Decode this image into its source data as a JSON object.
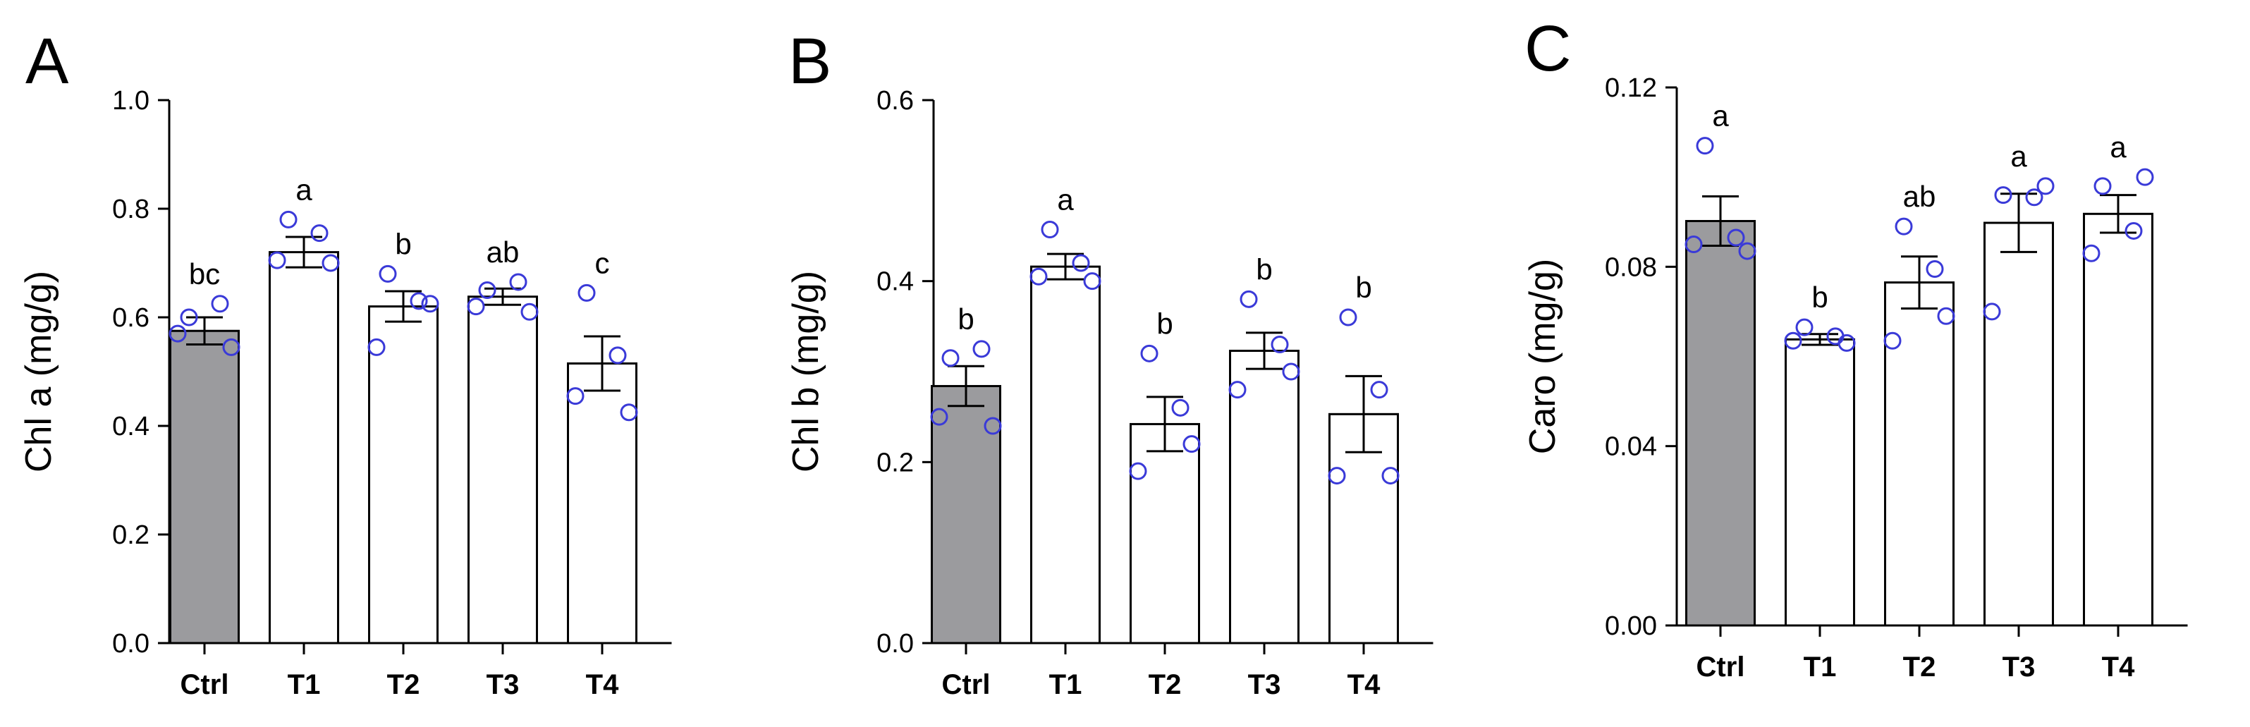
{
  "colors": {
    "control_bar": "#9b9b9e",
    "treatment_bar": "#ffffff",
    "outline": "#000000",
    "points": "#3a3ad8"
  },
  "chart_data": [
    {
      "type": "bar",
      "panel": "A",
      "ylabel": "Chl a (mg/g)",
      "ylim": [
        0,
        1.0
      ],
      "yticks": [
        "0.0",
        "0.2",
        "0.4",
        "0.6",
        "0.8",
        "1.0"
      ],
      "categories": [
        "Ctrl",
        "T1",
        "T2",
        "T3",
        "T4"
      ],
      "values": [
        0.575,
        0.72,
        0.62,
        0.638,
        0.515
      ],
      "sem": [
        0.025,
        0.028,
        0.028,
        0.015,
        0.05
      ],
      "points": [
        [
          0.6,
          0.625,
          0.545,
          0.57
        ],
        [
          0.78,
          0.755,
          0.7,
          0.705
        ],
        [
          0.68,
          0.63,
          0.625,
          0.545
        ],
        [
          0.65,
          0.665,
          0.61,
          0.62
        ],
        [
          0.645,
          0.53,
          0.425,
          0.455
        ]
      ],
      "significance": [
        "bc",
        "a",
        "b",
        "ab",
        "c"
      ]
    },
    {
      "type": "bar",
      "panel": "B",
      "ylabel": "Chl b (mg/g)",
      "ylim": [
        0,
        0.6
      ],
      "yticks": [
        "0.0",
        "0.2",
        "0.4",
        "0.6"
      ],
      "categories": [
        "Ctrl",
        "T1",
        "T2",
        "T3",
        "T4"
      ],
      "values": [
        0.284,
        0.416,
        0.242,
        0.323,
        0.253
      ],
      "sem": [
        0.022,
        0.014,
        0.03,
        0.02,
        0.042
      ],
      "points": [
        [
          0.315,
          0.325,
          0.24,
          0.25
        ],
        [
          0.457,
          0.42,
          0.4,
          0.405
        ],
        [
          0.32,
          0.26,
          0.22,
          0.19
        ],
        [
          0.38,
          0.33,
          0.3,
          0.28
        ],
        [
          0.36,
          0.28,
          0.185,
          0.185
        ]
      ],
      "significance": [
        "b",
        "a",
        "b",
        "b",
        "b"
      ]
    },
    {
      "type": "bar",
      "panel": "C",
      "ylabel": "Caro (mg/g)",
      "ylim": [
        0,
        0.12
      ],
      "yticks": [
        "0.00",
        "0.04",
        "0.08",
        "0.12"
      ],
      "categories": [
        "Ctrl",
        "T1",
        "T2",
        "T3",
        "T4"
      ],
      "values": [
        0.0902,
        0.0638,
        0.0765,
        0.0898,
        0.0918
      ],
      "sem": [
        0.0055,
        0.0012,
        0.0058,
        0.0065,
        0.0042
      ],
      "points": [
        [
          0.107,
          0.0865,
          0.0835,
          0.085
        ],
        [
          0.0665,
          0.0645,
          0.063,
          0.0635
        ],
        [
          0.089,
          0.0795,
          0.069,
          0.0635
        ],
        [
          0.096,
          0.0955,
          0.098,
          0.07
        ],
        [
          0.098,
          0.088,
          0.1,
          0.083
        ]
      ],
      "significance": [
        "a",
        "b",
        "ab",
        "a",
        "a"
      ]
    }
  ]
}
